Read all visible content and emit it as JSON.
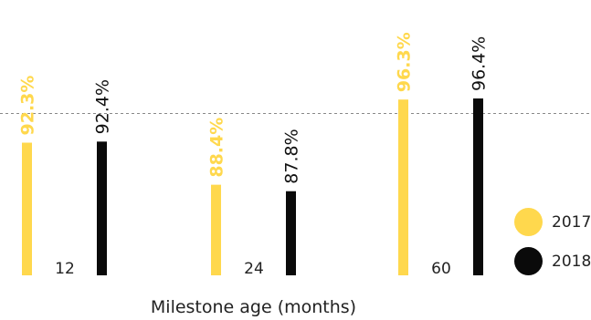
{
  "chart_data": {
    "type": "bar",
    "xlabel": "Milestone age (months)",
    "categories": [
      "12",
      "24",
      "60"
    ],
    "series": [
      {
        "name": "2017",
        "values": [
          92.3,
          88.4,
          96.3
        ],
        "labels": [
          "92.3%",
          "88.4%",
          "96.3%"
        ],
        "color": "#FFD84D"
      },
      {
        "name": "2018",
        "values": [
          92.4,
          87.8,
          96.4
        ],
        "labels": [
          "92.4%",
          "87.8%",
          "96.4%"
        ],
        "color": "#0A0A0A"
      }
    ],
    "reference_line": {
      "value": 95,
      "style": "dashed"
    },
    "grid": false,
    "legend_position": "right"
  }
}
